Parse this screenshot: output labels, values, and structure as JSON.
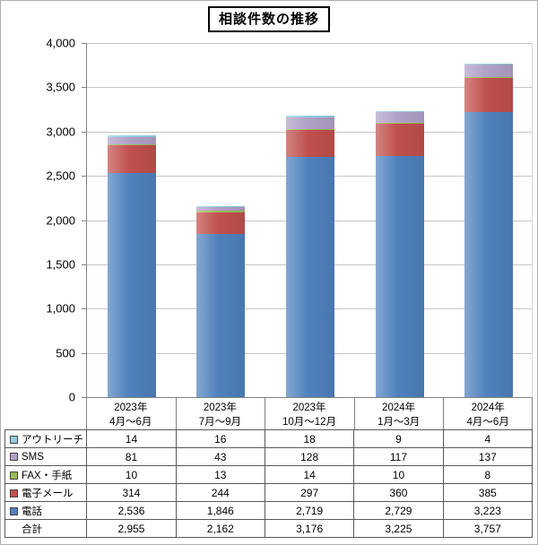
{
  "title": "相談件数の推移",
  "chart_data": {
    "type": "bar",
    "stacked": true,
    "title": "相談件数の推移",
    "categories": [
      [
        "2023年",
        "4月～6月"
      ],
      [
        "2023年",
        "7月～9月"
      ],
      [
        "2023年",
        "10月～12月"
      ],
      [
        "2024年",
        "1月～3月"
      ],
      [
        "2024年",
        "4月～6月"
      ]
    ],
    "series": [
      {
        "name": "電話",
        "color": "#4F81BD",
        "values": [
          2536,
          1846,
          2719,
          2729,
          3223
        ]
      },
      {
        "name": "電子メール",
        "color": "#C0504D",
        "values": [
          314,
          244,
          297,
          360,
          385
        ]
      },
      {
        "name": "FAX・手紙",
        "color": "#9BBB59",
        "values": [
          10,
          13,
          14,
          10,
          8
        ]
      },
      {
        "name": "SMS",
        "color": "#B1A0C7",
        "values": [
          81,
          43,
          128,
          117,
          137
        ]
      },
      {
        "name": "アウトリーチ",
        "color": "#93CDDD",
        "values": [
          14,
          16,
          18,
          9,
          4
        ]
      }
    ],
    "totals": [
      2955,
      2162,
      3176,
      3225,
      3757
    ],
    "ylim": [
      0,
      4000
    ],
    "ytick_interval": 500,
    "yticks": [
      "4,000",
      "3,500",
      "3,000",
      "2,500",
      "2,000",
      "1,500",
      "1,000",
      "500",
      "0"
    ],
    "grid": true,
    "legend_position": "table-left"
  },
  "table": {
    "rows": [
      {
        "label": "アウトリーチ",
        "swatch": "#93CDDD",
        "values": [
          "14",
          "16",
          "18",
          "9",
          "4"
        ]
      },
      {
        "label": "SMS",
        "swatch": "#B1A0C7",
        "values": [
          "81",
          "43",
          "128",
          "117",
          "137"
        ]
      },
      {
        "label": "FAX・手紙",
        "swatch": "#9BBB59",
        "values": [
          "10",
          "13",
          "14",
          "10",
          "8"
        ]
      },
      {
        "label": "電子メール",
        "swatch": "#C0504D",
        "values": [
          "314",
          "244",
          "297",
          "360",
          "385"
        ]
      },
      {
        "label": "電話",
        "swatch": "#4F81BD",
        "values": [
          "2,536",
          "1,846",
          "2,719",
          "2,729",
          "3,223"
        ]
      },
      {
        "label": "合計",
        "swatch": null,
        "values": [
          "2,955",
          "2,162",
          "3,176",
          "3,225",
          "3,757"
        ]
      }
    ]
  }
}
